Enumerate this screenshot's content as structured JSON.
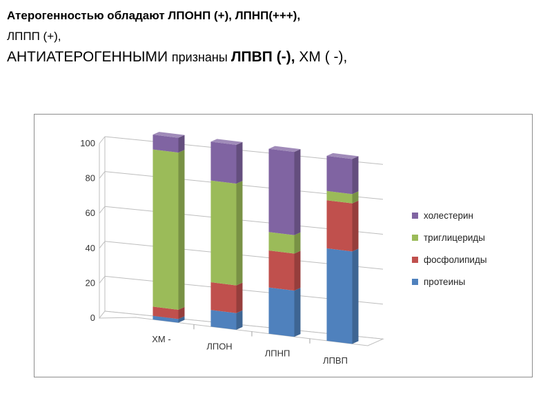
{
  "heading": {
    "line1_a": "Атерогенностью обладают ",
    "line1_b": "ЛПОНП (+), ЛПНП(+++),",
    "line2": "ЛППП (+),",
    "line3_a": "АНТИАТЕРОГЕННЫМИ ",
    "line3_b": "признаны ",
    "line3_c": "ЛПВП (-),",
    "line3_d": " ХМ ( -),"
  },
  "colors": {
    "протеины": "#4f81bd",
    "фосфолипиды": "#c0504d",
    "триглицериды": "#9bbb59",
    "холестерин": "#8064a2"
  },
  "chart_data": {
    "type": "bar",
    "stacked": true,
    "three_d": true,
    "categories": [
      "ХМ  -",
      "ЛПОН",
      "ЛПНП",
      "ЛПВП"
    ],
    "series": [
      {
        "name": "протеины",
        "values": [
          2,
          9,
          25,
          50
        ]
      },
      {
        "name": "фосфолипиды",
        "values": [
          5,
          15,
          20,
          26
        ]
      },
      {
        "name": "триглицериды",
        "values": [
          85,
          55,
          10,
          5
        ]
      },
      {
        "name": "холестерин",
        "values": [
          8,
          21,
          45,
          19
        ]
      }
    ],
    "y_ticks": [
      "0",
      "20",
      "40",
      "60",
      "80",
      "100"
    ],
    "ylim": [
      0,
      100
    ],
    "legend_order": [
      "холестерин",
      "триглицериды",
      "фосфолипиды",
      "протеины"
    ],
    "legend_position": "right",
    "grid": true
  }
}
